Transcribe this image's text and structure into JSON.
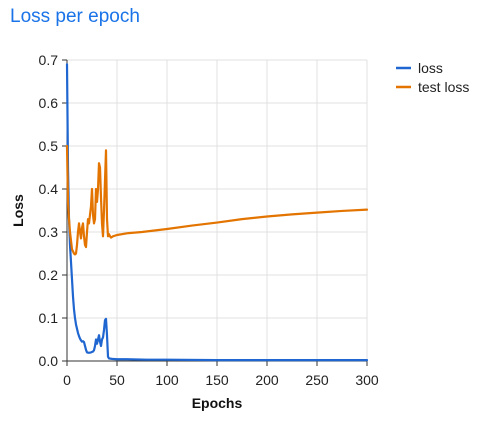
{
  "chart_data": {
    "type": "line",
    "title": "Loss per epoch",
    "xlabel": "Epochs",
    "ylabel": "Loss",
    "xlim": [
      0,
      300
    ],
    "ylim": [
      0,
      0.7
    ],
    "x_ticks": [
      0,
      50,
      100,
      150,
      200,
      250,
      300
    ],
    "y_ticks": [
      "0.0",
      "0.1",
      "0.2",
      "0.3",
      "0.4",
      "0.5",
      "0.6",
      "0.7"
    ],
    "grid": true,
    "legend": "top-right",
    "series": [
      {
        "name": "loss",
        "color": "#1f66d0",
        "points": [
          [
            0,
            0.69
          ],
          [
            1,
            0.45
          ],
          [
            2,
            0.33
          ],
          [
            3,
            0.27
          ],
          [
            4,
            0.23
          ],
          [
            5,
            0.19
          ],
          [
            6,
            0.15
          ],
          [
            7,
            0.12
          ],
          [
            8,
            0.1
          ],
          [
            9,
            0.085
          ],
          [
            10,
            0.075
          ],
          [
            11,
            0.065
          ],
          [
            12,
            0.058
          ],
          [
            13,
            0.052
          ],
          [
            14,
            0.048
          ],
          [
            15,
            0.045
          ],
          [
            16,
            0.046
          ],
          [
            17,
            0.044
          ],
          [
            18,
            0.035
          ],
          [
            19,
            0.026
          ],
          [
            20,
            0.02
          ],
          [
            22,
            0.019
          ],
          [
            24,
            0.02
          ],
          [
            26,
            0.022
          ],
          [
            27,
            0.025
          ],
          [
            28,
            0.035
          ],
          [
            29,
            0.05
          ],
          [
            30,
            0.04
          ],
          [
            31,
            0.05
          ],
          [
            32,
            0.06
          ],
          [
            33,
            0.045
          ],
          [
            34,
            0.035
          ],
          [
            35,
            0.05
          ],
          [
            36,
            0.055
          ],
          [
            37,
            0.072
          ],
          [
            38,
            0.095
          ],
          [
            39,
            0.098
          ],
          [
            40,
            0.06
          ],
          [
            41,
            0.01
          ],
          [
            42,
            0.006
          ],
          [
            45,
            0.005
          ],
          [
            50,
            0.004
          ],
          [
            60,
            0.004
          ],
          [
            80,
            0.003
          ],
          [
            100,
            0.003
          ],
          [
            150,
            0.002
          ],
          [
            200,
            0.002
          ],
          [
            250,
            0.002
          ],
          [
            300,
            0.002
          ]
        ]
      },
      {
        "name": "test loss",
        "color": "#e37400",
        "points": [
          [
            0,
            0.5
          ],
          [
            1,
            0.37
          ],
          [
            2,
            0.33
          ],
          [
            3,
            0.3
          ],
          [
            4,
            0.28
          ],
          [
            5,
            0.26
          ],
          [
            6,
            0.255
          ],
          [
            7,
            0.25
          ],
          [
            8,
            0.248
          ],
          [
            9,
            0.25
          ],
          [
            10,
            0.27
          ],
          [
            11,
            0.3
          ],
          [
            12,
            0.32
          ],
          [
            13,
            0.3
          ],
          [
            14,
            0.285
          ],
          [
            15,
            0.31
          ],
          [
            16,
            0.32
          ],
          [
            17,
            0.29
          ],
          [
            18,
            0.27
          ],
          [
            19,
            0.265
          ],
          [
            20,
            0.3
          ],
          [
            21,
            0.33
          ],
          [
            22,
            0.32
          ],
          [
            23,
            0.34
          ],
          [
            24,
            0.36
          ],
          [
            25,
            0.4
          ],
          [
            26,
            0.34
          ],
          [
            27,
            0.32
          ],
          [
            28,
            0.33
          ],
          [
            29,
            0.4
          ],
          [
            30,
            0.37
          ],
          [
            31,
            0.4
          ],
          [
            32,
            0.46
          ],
          [
            33,
            0.45
          ],
          [
            34,
            0.38
          ],
          [
            35,
            0.32
          ],
          [
            36,
            0.29
          ],
          [
            37,
            0.35
          ],
          [
            38,
            0.42
          ],
          [
            39,
            0.49
          ],
          [
            40,
            0.33
          ],
          [
            41,
            0.29
          ],
          [
            42,
            0.295
          ],
          [
            43,
            0.29
          ],
          [
            44,
            0.287
          ],
          [
            46,
            0.29
          ],
          [
            50,
            0.293
          ],
          [
            60,
            0.297
          ],
          [
            75,
            0.3
          ],
          [
            100,
            0.307
          ],
          [
            125,
            0.315
          ],
          [
            150,
            0.322
          ],
          [
            175,
            0.33
          ],
          [
            200,
            0.336
          ],
          [
            225,
            0.341
          ],
          [
            250,
            0.345
          ],
          [
            275,
            0.349
          ],
          [
            300,
            0.352
          ]
        ]
      }
    ]
  }
}
